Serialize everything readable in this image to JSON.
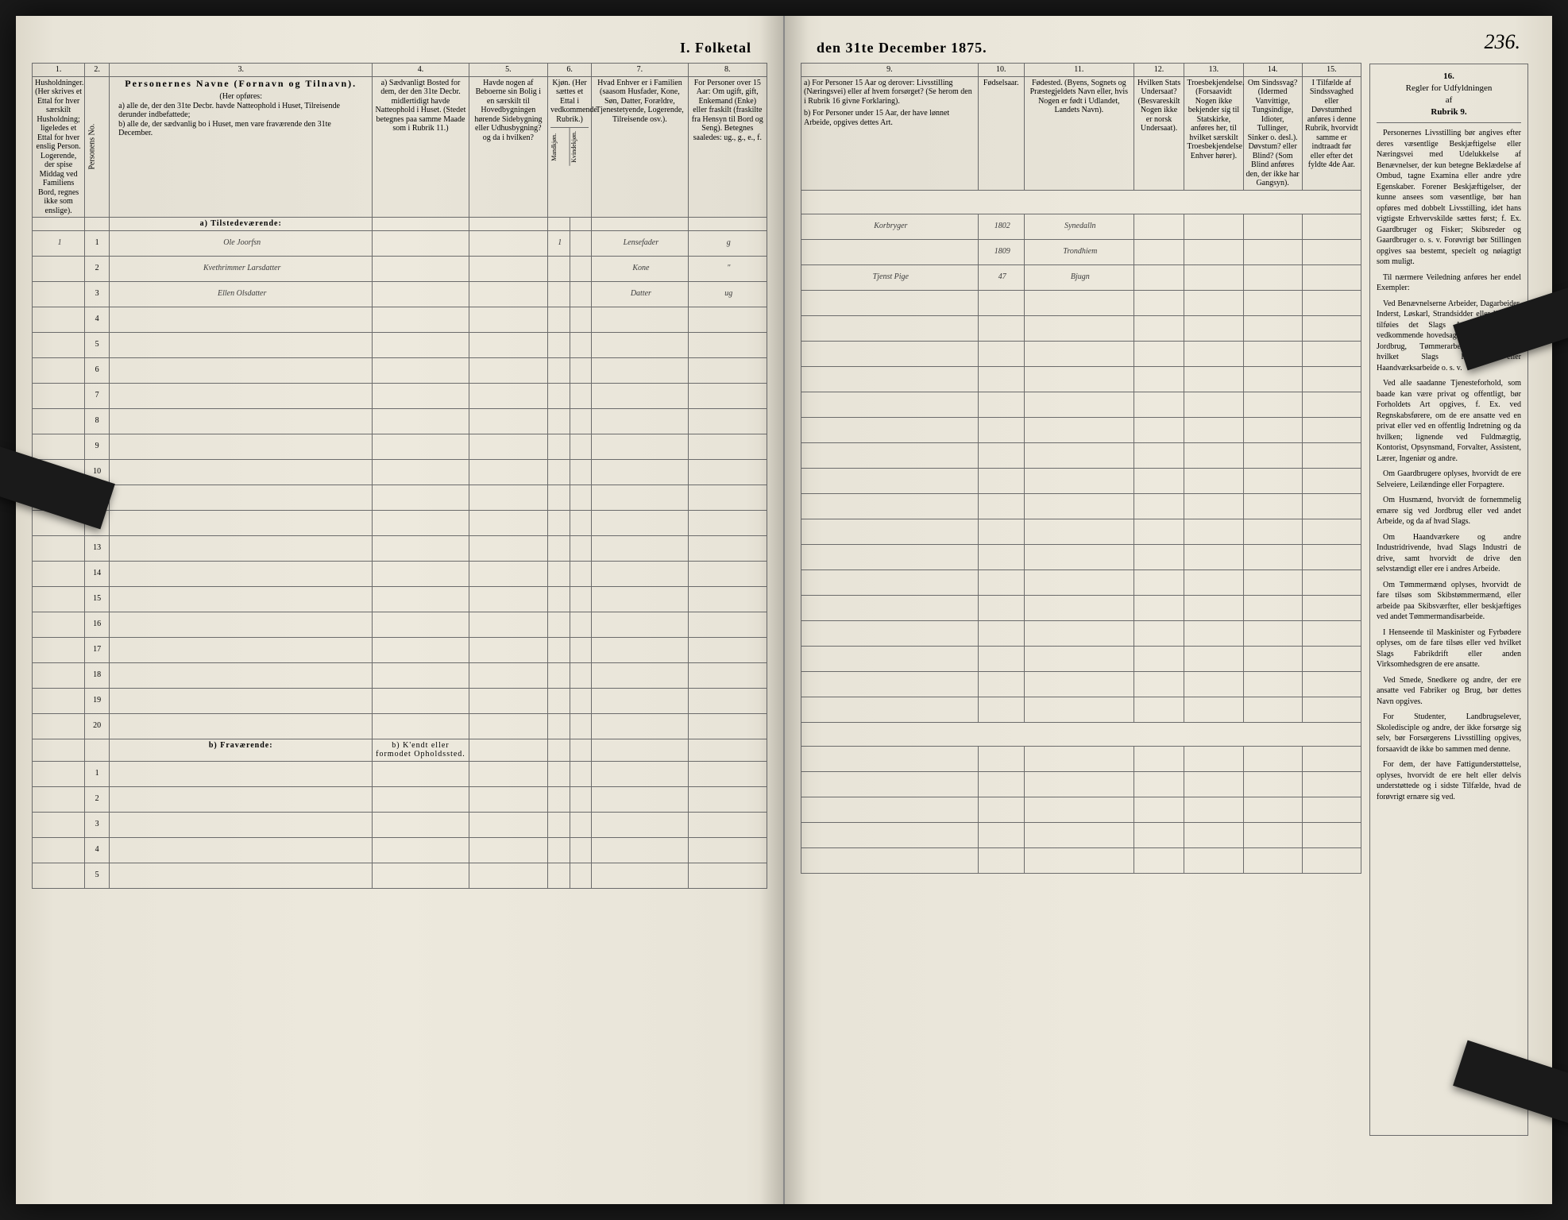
{
  "title_left": "I. Folketal",
  "title_right": "den 31te December 1875.",
  "page_number": "236.",
  "columns": {
    "c1": "1.",
    "c2": "2.",
    "c3": "3.",
    "c4": "4.",
    "c5": "5.",
    "c6": "6.",
    "c7": "7.",
    "c8": "8.",
    "c9": "9.",
    "c10": "10.",
    "c11": "11.",
    "c12": "12.",
    "c13": "13.",
    "c14": "14.",
    "c15": "15.",
    "c16": "16."
  },
  "headers": {
    "h1": "Husholdninger. (Her skrives et Ettal for hver særskilt Husholdning; ligeledes et Ettal for hver enslig Person. Logerende, der spise Middag ved Familiens Bord, regnes ikke som enslige).",
    "h2": "Personens No.",
    "h3_title": "Personernes Navne (Fornavn og Tilnavn).",
    "h3_sub": "(Her opføres:",
    "h3_a": "a) alle de, der den 31te Decbr. havde Natteophold i Huset, Tilreisende derunder indbefattede;",
    "h3_b": "b) alle de, der sædvanlig bo i Huset, men vare fraværende den 31te December.",
    "h4": "a) Sædvanligt Bosted for dem, der den 31te Decbr. midlertidigt havde Natteophold i Huset. (Stedet betegnes paa samme Maade som i Rubrik 11.)",
    "h5": "Havde nogen af Beboerne sin Bolig i en særskilt til Hovedbygningen hørende Sidebygning eller Udhusbygning? og da i hvilken?",
    "h6": "Kjøn. (Her sættes et Ettal i vedkommende Rubrik.)",
    "h6a": "Mandkjøn.",
    "h6b": "Kvindekjøn.",
    "h7": "Hvad Enhver er i Familien (saasom Husfader, Kone, Søn, Datter, Forældre, Tjenestetyende, Logerende, Tilreisende osv.).",
    "h8": "For Personer over 15 Aar: Om ugift, gift, Enkemand (Enke) eller fraskilt (fraskilte fra Hensyn til Bord og Seng). Betegnes saaledes: ug., g., e., f.",
    "h9_a": "a) For Personer 15 Aar og derover: Livsstilling (Næringsvei) eller af hvem forsørget? (Se herom den i Rubrik 16 givne Forklaring).",
    "h9_b": "b) For Personer under 15 Aar, der have lønnet Arbeide, opgives dettes Art.",
    "h10": "Fødselsaar.",
    "h11": "Fødested. (Byens, Sognets og Præstegjeldets Navn eller, hvis Nogen er født i Udlandet, Landets Navn).",
    "h12": "Hvilken Stats Undersaat? (Besvareskilt Nogen ikke er norsk Undersaat).",
    "h13": "Troesbekjendelse. (Forsaavidt Nogen ikke bekjender sig til Statskirke, anføres her, til hvilket særskilt Troesbekjendelse Enhver hører).",
    "h14": "Om Sindssvag? (Idermed Vanvittige, Tungsindige, Idioter, Tullinger, Sinker o. desl.). Døvstum? eller Blind? (Som Blind anføres den, der ikke har Gangsyn).",
    "h15": "I Tilfælde af Sindssvaghed eller Døvstumhed anføres i denne Rubrik, hvorvidt samme er indtraadt før eller efter det fyldte 4de Aar.",
    "h16_title": "Regler for Udfyldningen af Rubrik 9."
  },
  "section_a": "a) Tilstedeværende:",
  "section_b": "b) Fraværende:",
  "section_b_col4": "b) K'endt eller formodet Opholdssted.",
  "rows": [
    {
      "hh": "1",
      "no": "1",
      "name": "Ole Joorfsn",
      "c4": "",
      "c5": "",
      "m": "1",
      "k": "",
      "fam": "Lensefader",
      "ms": "g",
      "occ": "Korbryger",
      "yr": "1802",
      "place": "Synedalln"
    },
    {
      "hh": "",
      "no": "2",
      "name": "Kvethrimmer Larsdatter",
      "c4": "",
      "c5": "",
      "m": "",
      "k": "",
      "fam": "Kone",
      "ms": "\"",
      "occ": "",
      "yr": "1809",
      "place": "Trondhiem"
    },
    {
      "hh": "",
      "no": "3",
      "name": "Ellen Olsdatter",
      "c4": "",
      "c5": "",
      "m": "",
      "k": "",
      "fam": "Datter",
      "ms": "ug",
      "occ": "Tjenst Pige",
      "yr": "47",
      "place": "Bjugn"
    }
  ],
  "instructions": {
    "hdr1": "Regler for Udfyldningen",
    "hdr2": "af",
    "hdr3": "Rubrik 9.",
    "p1": "Personernes Livsstilling bør angives efter deres væsentlige Beskjæftigelse eller Næringsvei med Udelukkelse af Benævnelser, der kun betegne Beklædelse af Ombud, tagne Examina eller andre ydre Egenskaber. Forener Beskjæftigelser, der kunne ansees som væsentlige, bør han opføres med dobbelt Livsstilling, idet hans vigtigste Erhvervskilde sættes først; f. Ex. Gaardbruger og Fisker; Skibsreder og Gaardbruger o. s. v. Forøvrigt bør Stillingen opgives saa bestemt, specielt og nøiagtigt som muligt.",
    "p2": "Til nærmere Veiledning anføres her endel Exempler:",
    "p3": "Ved Benævnelserne Arbeider, Dagarbeider, Inderst, Løskarl, Strandsidder eller lign. bør tilføies det Slags Arbeide, hvormed vedkommende hovedsagelig er befat; f. Ex. Jordbrug, Tømmerarbeide, Veiarbeide, hvilket Slags Fabrik- eller Haandværksarbeide o. s. v.",
    "p4": "Ved alle saadanne Tjenesteforhold, som baade kan være privat og offentligt, bør Forholdets Art opgives, f. Ex. ved Regnskabsførere, om de ere ansatte ved en privat eller ved en offentlig Indretning og da hvilken; lignende ved Fuldmægtig, Kontorist, Opsynsmand, Forvalter, Assistent, Lærer, Ingeniør og andre.",
    "p5": "Om Gaardbrugere oplyses, hvorvidt de ere Selveiere, Leilændinge eller Forpagtere.",
    "p6": "Om Husmænd, hvorvidt de fornemmelig ernære sig ved Jordbrug eller ved andet Arbeide, og da af hvad Slags.",
    "p7": "Om Haandværkere og andre Industridrivende, hvad Slags Industri de drive, samt hvorvidt de drive den selvstændigt eller ere i andres Arbeide.",
    "p8": "Om Tømmermænd oplyses, hvorvidt de fare tilsøs som Skibstømmermænd, eller arbeide paa Skibsværfter, eller beskjæftiges ved andet Tømmermandisarbeide.",
    "p9": "I Henseende til Maskinister og Fyrbødere oplyses, om de fare tilsøs eller ved hvilket Slags Fabrikdrift eller anden Virksomhedsgren de ere ansatte.",
    "p10": "Ved Smede, Snedkere og andre, der ere ansatte ved Fabriker og Brug, bør dettes Navn opgives.",
    "p11": "For Studenter, Landbrugselever, Skoledisciple og andre, der ikke forsørge sig selv, bør Forsørgerens Livsstilling opgives, forsaavidt de ikke bo sammen med denne.",
    "p12": "For dem, der have Fattigunderstøttelse, oplyses, hvorvidt de ere helt eller delvis understøttede og i sidste Tilfælde, hvad de forøvrigt ernære sig ved."
  },
  "row_numbers_a": [
    "1",
    "2",
    "3",
    "4",
    "5",
    "6",
    "7",
    "8",
    "9",
    "10",
    "11",
    "12",
    "13",
    "14",
    "15",
    "16",
    "17",
    "18",
    "19",
    "20"
  ],
  "row_numbers_b": [
    "1",
    "2",
    "3",
    "4",
    "5"
  ],
  "colors": {
    "paper": "#e8e4d8",
    "line": "#6b6b6b",
    "ink": "#3a3a3a",
    "bg": "#1a1a1a"
  }
}
